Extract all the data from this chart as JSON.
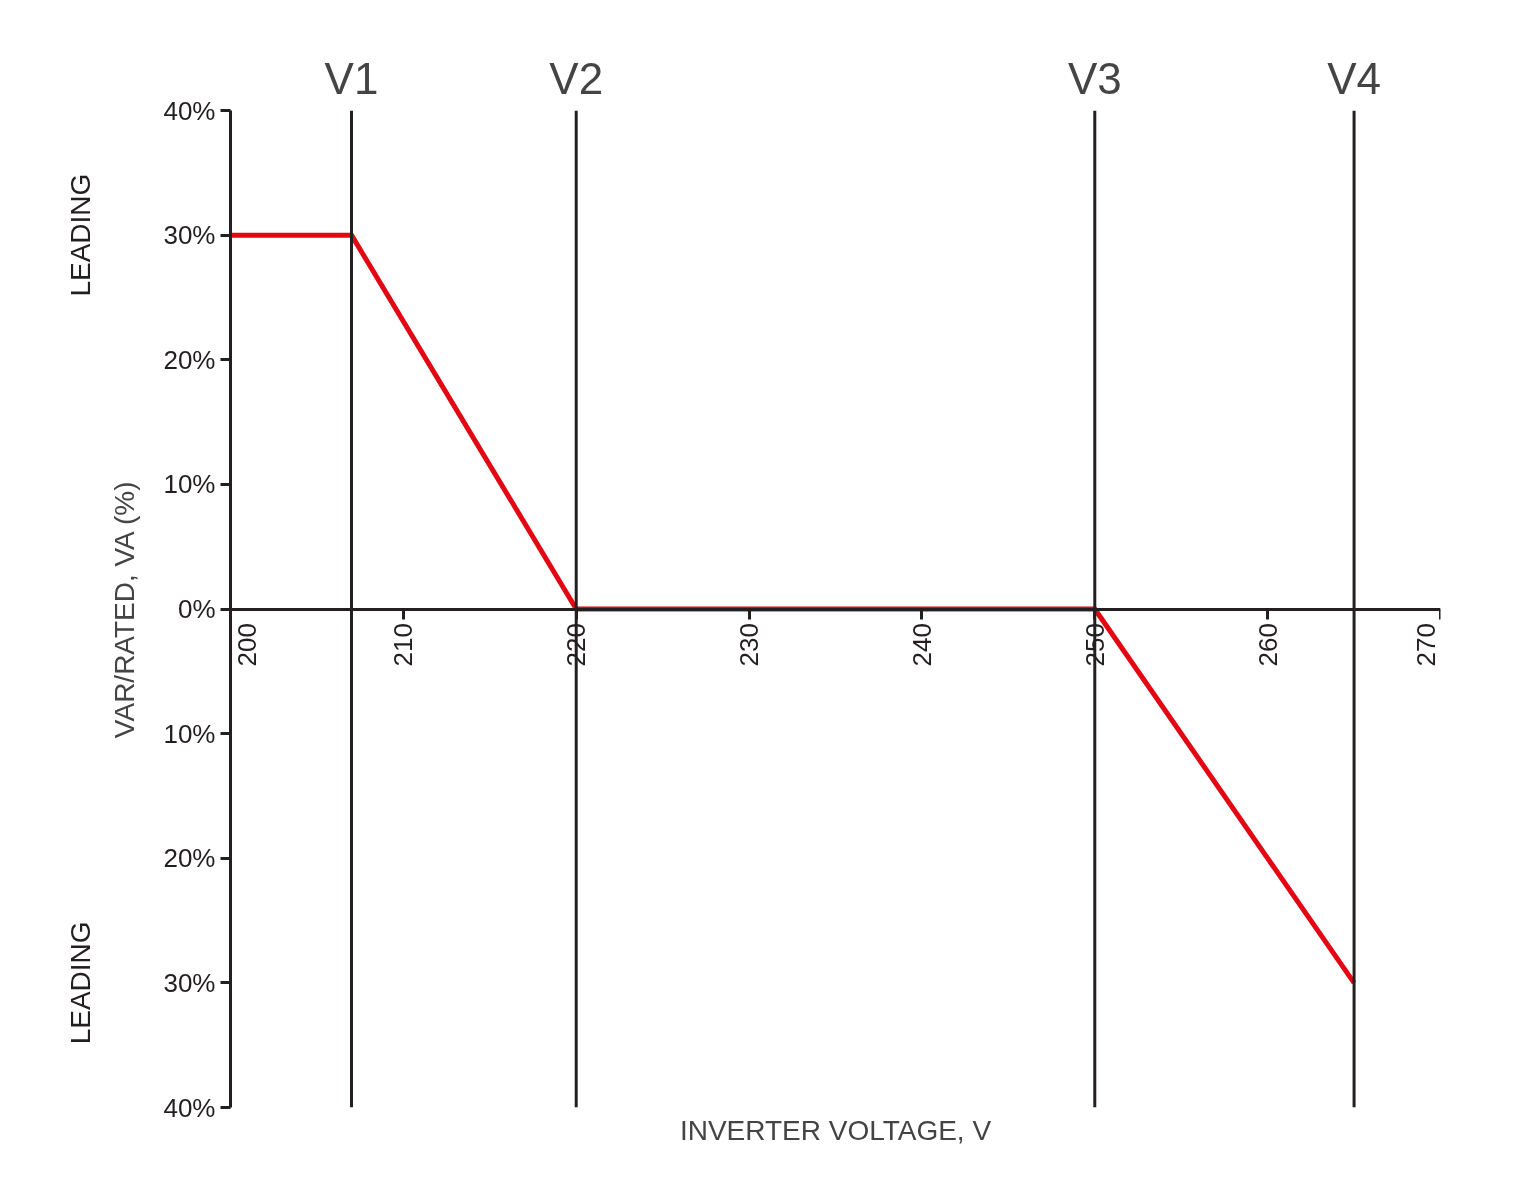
{
  "chart_data": {
    "type": "line",
    "xlabel": "INVERTER VOLTAGE, V",
    "ylabel": "VAR/RATED, VA (%)",
    "annotations": [
      "LEADING",
      "LEADING"
    ],
    "x": [
      200,
      207,
      220,
      250,
      265
    ],
    "series": [
      {
        "color": "#e30613",
        "values": [
          30,
          30,
          0,
          0,
          -30
        ]
      }
    ],
    "xlim": [
      200,
      270
    ],
    "xticks": [
      200,
      210,
      220,
      230,
      240,
      250,
      260,
      270
    ],
    "ylim": [
      -40,
      40
    ],
    "yticks": [
      {
        "value": -40,
        "label": "40%"
      },
      {
        "value": -30,
        "label": "30%"
      },
      {
        "value": -20,
        "label": "20%"
      },
      {
        "value": -10,
        "label": "10%"
      },
      {
        "value": 0,
        "label": "0%"
      },
      {
        "value": 10,
        "label": "10%"
      },
      {
        "value": 20,
        "label": "20%"
      },
      {
        "value": 30,
        "label": "30%"
      },
      {
        "value": 40,
        "label": "40%"
      }
    ],
    "ref_lines": [
      {
        "axis": "x",
        "value": 207,
        "label": "V1",
        "color": "#231f20"
      },
      {
        "axis": "x",
        "value": 220,
        "label": "V2",
        "color": "#231f20"
      },
      {
        "axis": "x",
        "value": 250,
        "label": "V3",
        "color": "#231f20"
      },
      {
        "axis": "x",
        "value": 265,
        "label": "V4",
        "color": "#231f20"
      }
    ],
    "grid": false,
    "marker": "none",
    "line_style": "solid"
  }
}
